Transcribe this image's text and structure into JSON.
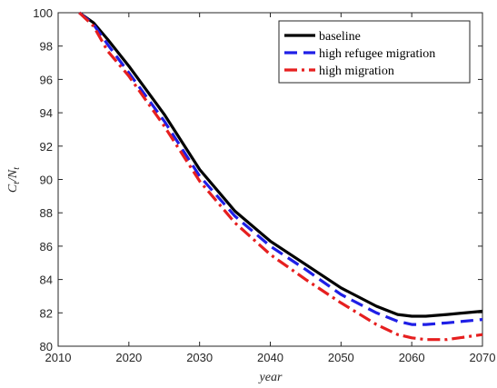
{
  "chart_data": {
    "type": "line",
    "xlabel": "year",
    "ylabel": "C_t/N_t",
    "xlim": [
      2010,
      2070
    ],
    "ylim": [
      80,
      100
    ],
    "xticks": [
      2010,
      2020,
      2030,
      2040,
      2050,
      2060,
      2070
    ],
    "yticks": [
      80,
      82,
      84,
      86,
      88,
      90,
      92,
      94,
      96,
      98,
      100
    ],
    "grid": false,
    "legend_position": "top-right",
    "series": [
      {
        "name": "baseline",
        "color": "#000000",
        "style": "solid",
        "x": [
          2013,
          2015,
          2017,
          2020,
          2025,
          2030,
          2035,
          2040,
          2045,
          2050,
          2055,
          2058,
          2060,
          2062,
          2065,
          2070
        ],
        "y": [
          100,
          99.4,
          98.4,
          96.8,
          93.9,
          90.6,
          88.1,
          86.3,
          84.9,
          83.5,
          82.4,
          81.9,
          81.8,
          81.8,
          81.9,
          82.1
        ]
      },
      {
        "name": "high refugee migration",
        "color": "#1f1fe6",
        "style": "dashed",
        "x": [
          2013,
          2015,
          2017,
          2020,
          2025,
          2030,
          2035,
          2040,
          2045,
          2050,
          2055,
          2058,
          2060,
          2062,
          2065,
          2070
        ],
        "y": [
          100,
          99.3,
          98.1,
          96.4,
          93.5,
          90.2,
          87.8,
          86.0,
          84.6,
          83.1,
          82.0,
          81.5,
          81.3,
          81.3,
          81.4,
          81.6
        ]
      },
      {
        "name": "high migration",
        "color": "#e61f1f",
        "style": "dashdot",
        "x": [
          2013,
          2015,
          2017,
          2020,
          2025,
          2030,
          2035,
          2040,
          2045,
          2050,
          2055,
          2058,
          2060,
          2062,
          2065,
          2070
        ],
        "y": [
          100,
          99.2,
          97.7,
          96.2,
          93.2,
          89.9,
          87.4,
          85.5,
          84.0,
          82.6,
          81.3,
          80.7,
          80.5,
          80.4,
          80.4,
          80.7
        ]
      }
    ]
  }
}
